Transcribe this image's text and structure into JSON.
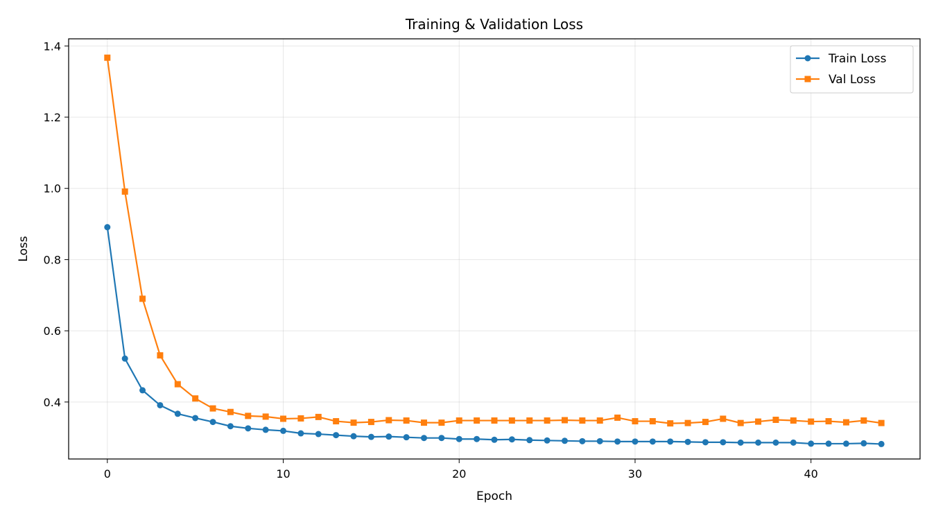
{
  "chart_data": {
    "type": "line",
    "title": "Training & Validation Loss",
    "xlabel": "Epoch",
    "ylabel": "Loss",
    "xlim": [
      -2.2,
      46.2
    ],
    "ylim": [
      0.24,
      1.42
    ],
    "xticks": [
      0,
      10,
      20,
      30,
      40
    ],
    "yticks": [
      0.4,
      0.6,
      0.8,
      1.0,
      1.2,
      1.4
    ],
    "ytick_labels": [
      "0.4",
      "0.6",
      "0.8",
      "1.0",
      "1.2",
      "1.4"
    ],
    "grid": true,
    "legend_position": "top-right",
    "x": [
      0,
      1,
      2,
      3,
      4,
      5,
      6,
      7,
      8,
      9,
      10,
      11,
      12,
      13,
      14,
      15,
      16,
      17,
      18,
      19,
      20,
      21,
      22,
      23,
      24,
      25,
      26,
      27,
      28,
      29,
      30,
      31,
      32,
      33,
      34,
      35,
      36,
      37,
      38,
      39,
      40,
      41,
      42,
      43,
      44
    ],
    "series": [
      {
        "name": "Train Loss",
        "color": "#1f77b4",
        "marker": "circle",
        "values": [
          0.891,
          0.522,
          0.433,
          0.391,
          0.367,
          0.355,
          0.344,
          0.332,
          0.326,
          0.322,
          0.319,
          0.312,
          0.31,
          0.307,
          0.304,
          0.302,
          0.303,
          0.301,
          0.299,
          0.299,
          0.296,
          0.296,
          0.294,
          0.295,
          0.293,
          0.292,
          0.291,
          0.29,
          0.29,
          0.289,
          0.289,
          0.289,
          0.289,
          0.288,
          0.287,
          0.287,
          0.286,
          0.286,
          0.286,
          0.286,
          0.283,
          0.283,
          0.283,
          0.284,
          0.282
        ]
      },
      {
        "name": "Val Loss",
        "color": "#ff7f0e",
        "marker": "square",
        "values": [
          1.367,
          0.991,
          0.69,
          0.531,
          0.45,
          0.41,
          0.382,
          0.372,
          0.361,
          0.359,
          0.353,
          0.354,
          0.358,
          0.346,
          0.342,
          0.344,
          0.349,
          0.348,
          0.342,
          0.342,
          0.348,
          0.348,
          0.348,
          0.348,
          0.348,
          0.348,
          0.349,
          0.348,
          0.348,
          0.356,
          0.346,
          0.346,
          0.34,
          0.341,
          0.344,
          0.353,
          0.341,
          0.345,
          0.35,
          0.348,
          0.345,
          0.346,
          0.343,
          0.348,
          0.341
        ]
      }
    ]
  }
}
